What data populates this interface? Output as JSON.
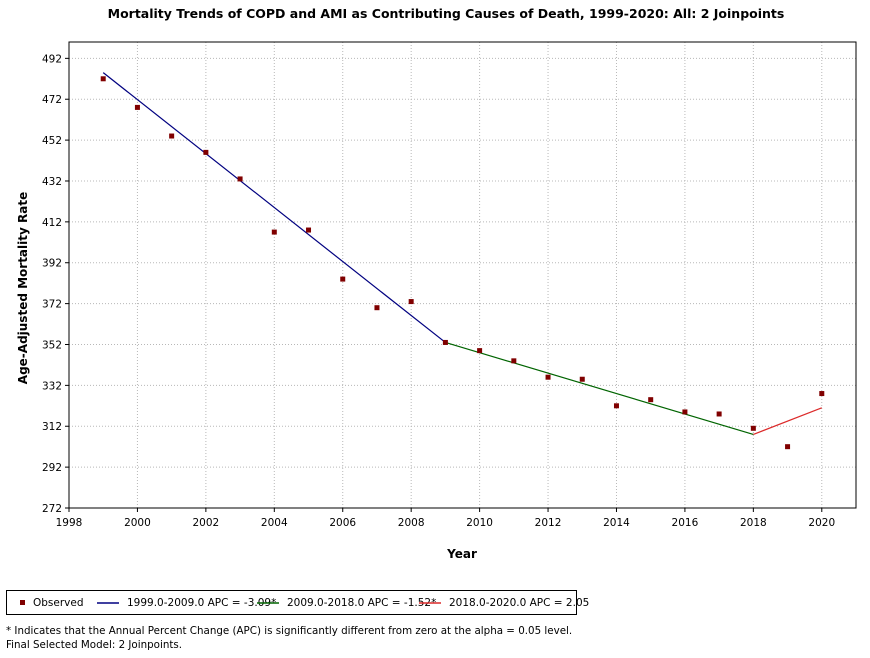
{
  "chart_data": {
    "type": "line",
    "title": "Mortality Trends of COPD and AMI as Contributing Causes of Death, 1999-2020: All: 2 Joinpoints",
    "xlabel": "Year",
    "ylabel": "Age-Adjusted Mortality Rate",
    "xlim": [
      1998,
      2021
    ],
    "ylim": [
      272,
      500
    ],
    "xticks": [
      "1998",
      "2000",
      "2002",
      "2004",
      "2006",
      "2008",
      "2010",
      "2012",
      "2014",
      "2016",
      "2018",
      "2020"
    ],
    "yticks": [
      "272",
      "292",
      "312",
      "332",
      "352",
      "372",
      "392",
      "412",
      "432",
      "452",
      "472",
      "492"
    ],
    "grid": true,
    "observed": {
      "name": "Observed",
      "color": "#800000",
      "x": [
        1999,
        2000,
        2001,
        2002,
        2003,
        2004,
        2005,
        2006,
        2007,
        2008,
        2009,
        2010,
        2011,
        2012,
        2013,
        2014,
        2015,
        2016,
        2017,
        2018,
        2019,
        2020
      ],
      "y": [
        482,
        468,
        454,
        446,
        433,
        407,
        408,
        384,
        370,
        373,
        353,
        349,
        344,
        336,
        335,
        322,
        325,
        319,
        318,
        311,
        302,
        328
      ]
    },
    "series": [
      {
        "name": "1999.0-2009.0 APC  = -3.09*",
        "color": "#000080",
        "x": [
          1999,
          2009
        ],
        "y": [
          485,
          353
        ]
      },
      {
        "name": "2009.0-2018.0 APC  = -1.52*",
        "color": "#006400",
        "x": [
          2009,
          2018
        ],
        "y": [
          353,
          308
        ]
      },
      {
        "name": "2018.0-2020.0 APC  =  2.05",
        "color": "#dc2a2a",
        "x": [
          2018,
          2020
        ],
        "y": [
          308,
          321
        ]
      }
    ]
  },
  "footnotes": {
    "apc_note": "* Indicates that the Annual Percent Change (APC) is significantly different from zero at the alpha = 0.05 level.",
    "model_note": "Final Selected Model: 2 Joinpoints."
  }
}
